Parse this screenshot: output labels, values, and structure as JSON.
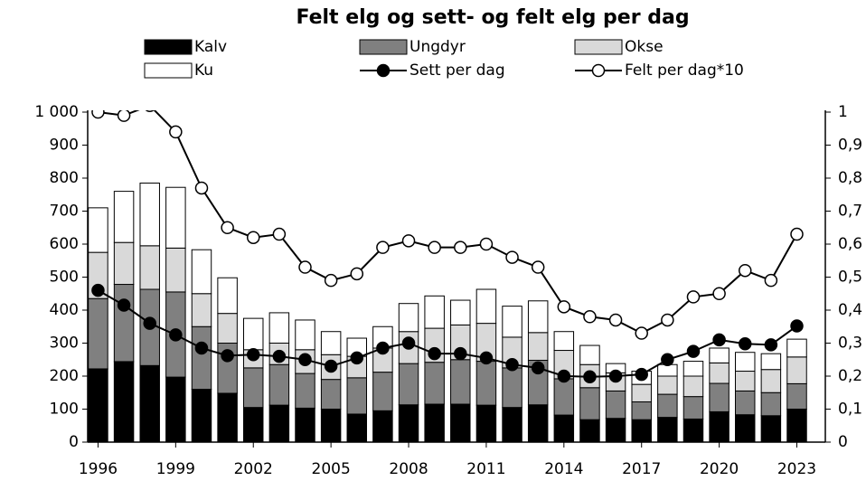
{
  "chart_data": {
    "type": "bar_line",
    "title": "Felt elg og sett- og felt elg per dag",
    "x": [
      1996,
      1997,
      1998,
      1999,
      2000,
      2001,
      2002,
      2003,
      2004,
      2005,
      2006,
      2007,
      2008,
      2009,
      2010,
      2011,
      2012,
      2013,
      2014,
      2015,
      2016,
      2017,
      2018,
      2019,
      2020,
      2021,
      2022,
      2023
    ],
    "xlim": [
      1995.6,
      2024.1
    ],
    "xticks": [
      1996,
      1999,
      2002,
      2005,
      2008,
      2011,
      2014,
      2017,
      2020,
      2023
    ],
    "ylim": [
      0,
      1000
    ],
    "yticks": [
      0,
      100,
      200,
      300,
      400,
      500,
      600,
      700,
      800,
      900,
      {
        "value": 1000,
        "label": "1 000"
      }
    ],
    "y2lim": [
      0,
      1
    ],
    "y2ticks": [
      0,
      {
        "value": 0.1,
        "label": "0,1"
      },
      {
        "value": 0.2,
        "label": "0,2"
      },
      {
        "value": 0.3,
        "label": "0,3"
      },
      {
        "value": 0.4,
        "label": "0,4"
      },
      {
        "value": 0.5,
        "label": "0,5"
      },
      {
        "value": 0.6,
        "label": "0,6"
      },
      {
        "value": 0.7,
        "label": "0,7"
      },
      {
        "value": 0.8,
        "label": "0,8"
      },
      {
        "value": 0.9,
        "label": "0,9"
      },
      1
    ],
    "series": [
      {
        "name": "Kalv",
        "type": "bar",
        "color": "#000000",
        "values": [
          222,
          244,
          232,
          197,
          160,
          148,
          105,
          112,
          103,
          100,
          85,
          95,
          113,
          115,
          115,
          112,
          105,
          113,
          82,
          68,
          72,
          68,
          75,
          70,
          92,
          83,
          80,
          100
        ]
      },
      {
        "name": "Ungdyr",
        "type": "bar",
        "color": "#808080",
        "values": [
          213,
          234,
          231,
          258,
          190,
          152,
          120,
          123,
          105,
          90,
          110,
          117,
          125,
          127,
          135,
          133,
          120,
          135,
          110,
          97,
          83,
          54,
          70,
          68,
          86,
          72,
          70,
          77
        ]
      },
      {
        "name": "Okse",
        "type": "bar",
        "color": "#d9d9d9",
        "values": [
          140,
          127,
          132,
          133,
          100,
          90,
          55,
          65,
          72,
          75,
          65,
          73,
          97,
          103,
          105,
          115,
          93,
          84,
          86,
          70,
          55,
          53,
          55,
          62,
          62,
          60,
          70,
          81
        ]
      },
      {
        "name": "Ku",
        "type": "bar",
        "color": "#ffffff",
        "values": [
          135,
          155,
          190,
          184,
          133,
          108,
          95,
          92,
          90,
          70,
          55,
          65,
          85,
          98,
          75,
          103,
          94,
          96,
          57,
          58,
          28,
          40,
          35,
          45,
          45,
          57,
          48,
          54
        ]
      },
      {
        "name": "Sett per dag",
        "type": "line",
        "axis": "y2",
        "color": "#000000",
        "marker_fill": "#000000",
        "values": [
          0.46,
          0.415,
          0.36,
          0.325,
          0.285,
          0.262,
          0.265,
          0.26,
          0.25,
          0.23,
          0.255,
          0.285,
          0.3,
          0.268,
          0.268,
          0.255,
          0.235,
          0.225,
          0.2,
          0.198,
          0.2,
          0.205,
          0.25,
          0.275,
          0.31,
          0.298,
          0.295,
          0.352
        ]
      },
      {
        "name": "Felt per dag*10",
        "type": "line",
        "axis": "y2",
        "color": "#000000",
        "marker_fill": "#ffffff",
        "values": [
          1.0,
          0.99,
          1.02,
          0.94,
          0.77,
          0.65,
          0.62,
          0.63,
          0.53,
          0.49,
          0.51,
          0.59,
          0.61,
          0.59,
          0.59,
          0.6,
          0.56,
          0.53,
          0.41,
          0.38,
          0.37,
          0.33,
          0.37,
          0.44,
          0.45,
          0.52,
          0.49,
          0.63
        ]
      }
    ]
  }
}
